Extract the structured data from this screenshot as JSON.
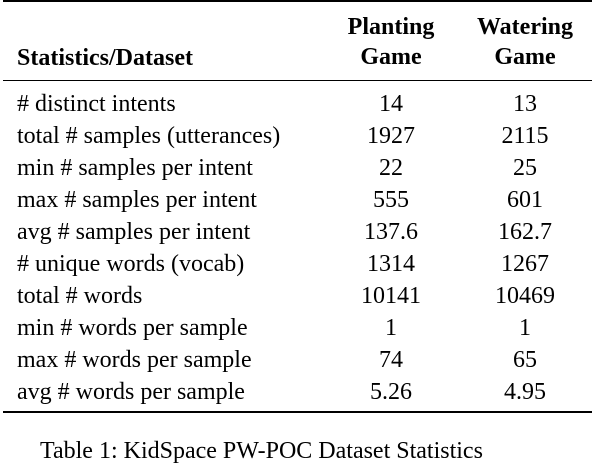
{
  "table": {
    "header": {
      "stat_label": "Statistics/Dataset",
      "col1_line1": "Planting",
      "col1_line2": "Game",
      "col2_line1": "Watering",
      "col2_line2": "Game"
    },
    "rows": [
      {
        "label": "# distinct intents",
        "planting": "14",
        "watering": "13"
      },
      {
        "label": "total # samples (utterances)",
        "planting": "1927",
        "watering": "2115"
      },
      {
        "label": "min # samples per intent",
        "planting": "22",
        "watering": "25"
      },
      {
        "label": "max # samples per intent",
        "planting": "555",
        "watering": "601"
      },
      {
        "label": "avg # samples per intent",
        "planting": "137.6",
        "watering": "162.7"
      },
      {
        "label": "# unique words (vocab)",
        "planting": "1314",
        "watering": "1267"
      },
      {
        "label": "total # words",
        "planting": "10141",
        "watering": "10469"
      },
      {
        "label": "min # words per sample",
        "planting": "1",
        "watering": "1"
      },
      {
        "label": "max # words per sample",
        "planting": "74",
        "watering": "65"
      },
      {
        "label": "avg # words per sample",
        "planting": "5.26",
        "watering": "4.95"
      }
    ]
  },
  "caption": "Table 1: KidSpace PW-POC Dataset Statistics"
}
